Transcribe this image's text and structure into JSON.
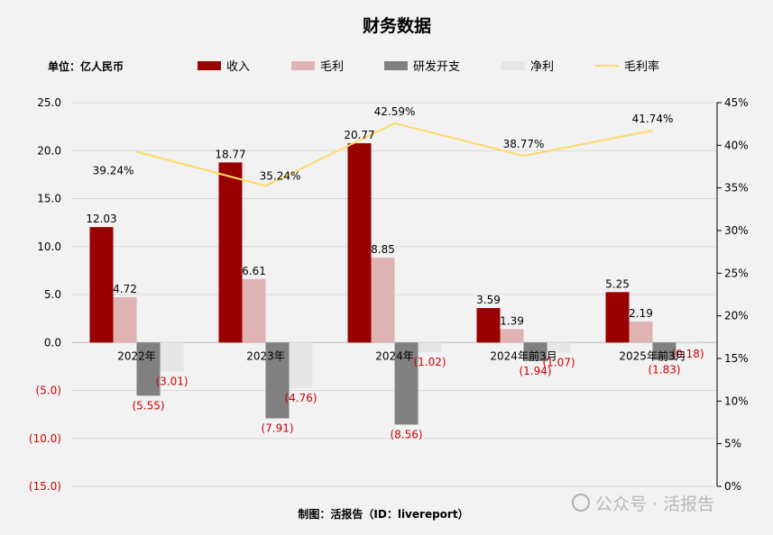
{
  "chart_data": {
    "type": "bar",
    "title": "财务数据",
    "unit_label": "单位：亿人民币",
    "footer": "制图：活报告（ID：livereport）",
    "watermark": "公众号 · 活报告",
    "categories": [
      "2022年",
      "2023年",
      "2024年",
      "2024年前3月",
      "2025年前3月"
    ],
    "series": [
      {
        "name": "收入",
        "color": "#990000",
        "values": [
          12.03,
          18.77,
          20.77,
          3.59,
          5.25
        ],
        "labels": [
          "12.03",
          "18.77",
          "20.77",
          "3.59",
          "5.25"
        ]
      },
      {
        "name": "毛利",
        "color": "#e0b3b3",
        "values": [
          4.72,
          6.61,
          8.85,
          1.39,
          2.19
        ],
        "labels": [
          "4.72",
          "6.61",
          "8.85",
          "1.39",
          "2.19"
        ]
      },
      {
        "name": "研发开支",
        "color": "#808080",
        "values": [
          -5.55,
          -7.91,
          -8.56,
          -1.94,
          -1.83
        ],
        "labels": [
          "(5.55)",
          "(7.91)",
          "(8.56)",
          "(1.94)",
          "(1.83)"
        ]
      },
      {
        "name": "净利",
        "color": "#e6e6e6",
        "values": [
          -3.01,
          -4.76,
          -1.02,
          -1.07,
          -0.18
        ],
        "labels": [
          "(3.01)",
          "(4.76)",
          "(1.02)",
          "(1.07)",
          "(0.18)"
        ]
      }
    ],
    "line_series": {
      "name": "毛利率",
      "color": "#ffd966",
      "values": [
        39.24,
        35.24,
        42.59,
        38.77,
        41.74
      ],
      "labels": [
        "39.24%",
        "35.24%",
        "42.59%",
        "38.77%",
        "41.74%"
      ]
    },
    "y_left": {
      "min": -15,
      "max": 25,
      "step": 5,
      "ticks": [
        "(15.0)",
        "(10.0)",
        "(5.0)",
        "0.0",
        "5.0",
        "10.0",
        "15.0",
        "20.0",
        "25.0"
      ]
    },
    "y_right": {
      "min": 0,
      "max": 45,
      "step": 5,
      "ticks": [
        "0%",
        "5%",
        "10%",
        "15%",
        "20%",
        "25%",
        "30%",
        "35%",
        "40%",
        "45%"
      ]
    },
    "negative_color": "#cc0000",
    "grid": true,
    "legend_position": "top"
  }
}
